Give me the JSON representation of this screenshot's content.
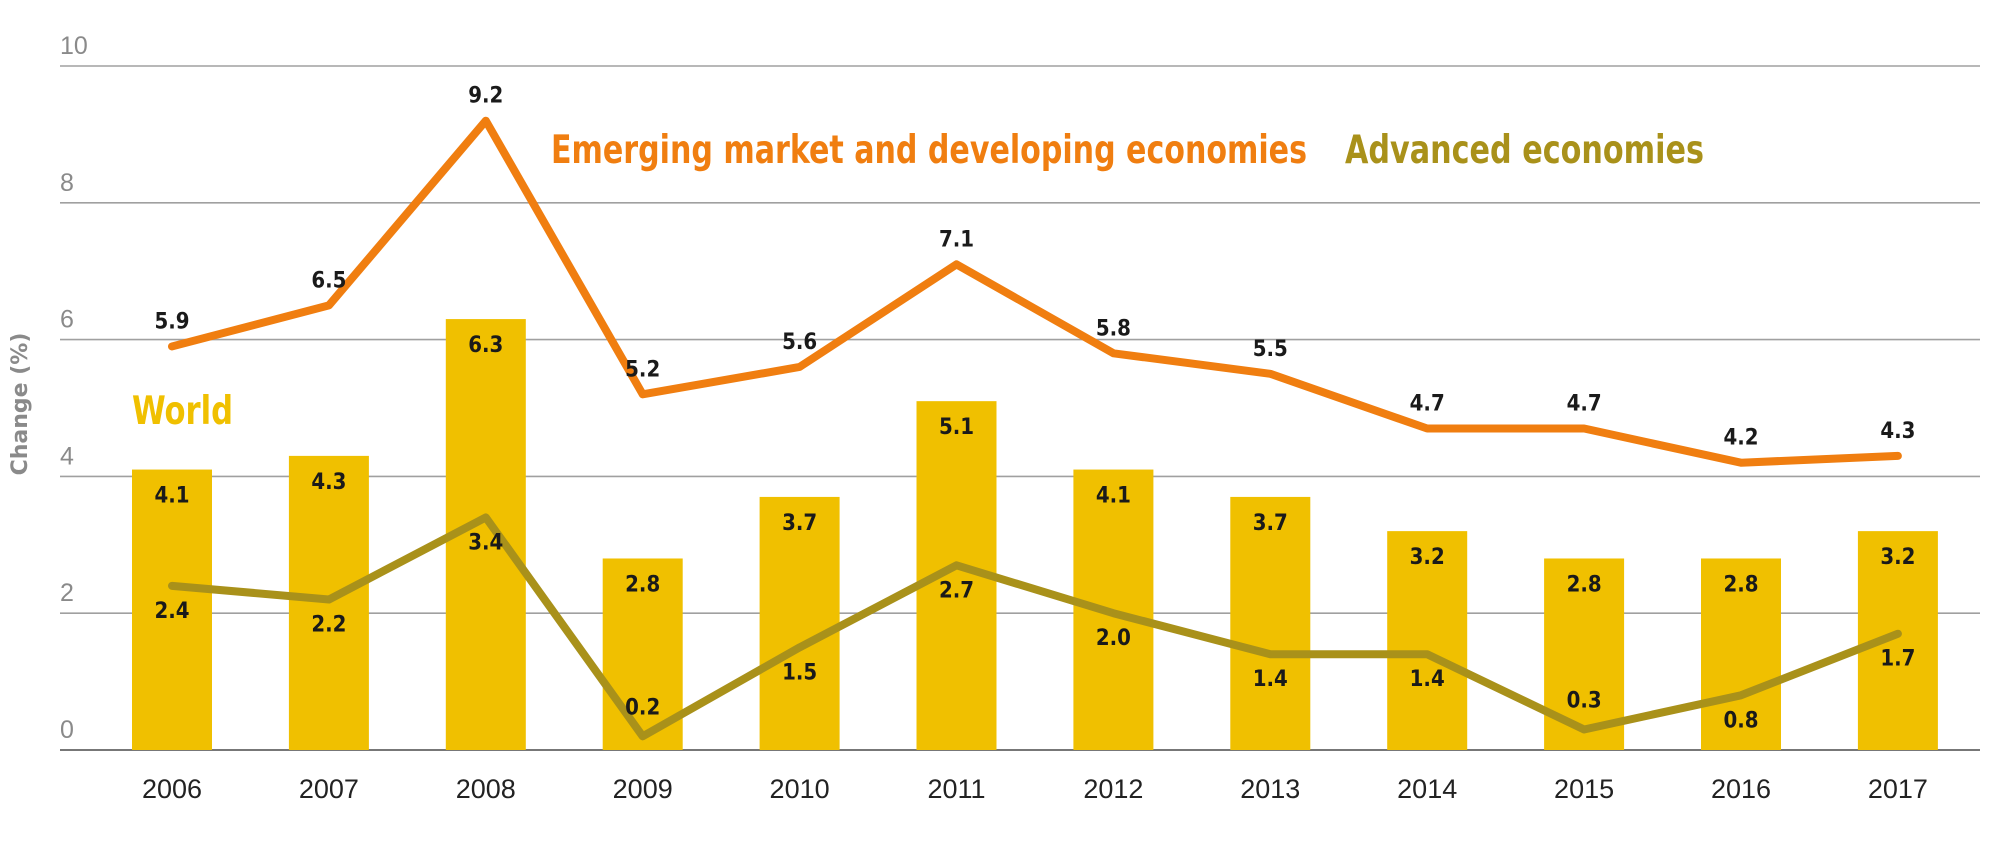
{
  "chart_data": {
    "type": "bar",
    "categories": [
      "2006",
      "2007",
      "2008",
      "2009",
      "2010",
      "2011",
      "2012",
      "2013",
      "2014",
      "2015",
      "2016",
      "2017"
    ],
    "ylabel": "Change (%)",
    "ylim": [
      0,
      10
    ],
    "yticks": [
      "0",
      "2",
      "4",
      "6",
      "8",
      "10"
    ],
    "grid": true,
    "series": [
      {
        "name": "World",
        "type": "bar",
        "color": "#f0c000",
        "values": [
          4.1,
          4.3,
          6.3,
          2.8,
          3.7,
          5.1,
          4.1,
          3.7,
          3.2,
          2.8,
          2.8,
          3.2
        ],
        "labels": [
          "4.1",
          "4.3",
          "6.3",
          "2.8",
          "3.7",
          "5.1",
          "4.1",
          "3.7",
          "3.2",
          "2.8",
          "2.8",
          "3.2"
        ]
      },
      {
        "name": "Emerging market and developing economies",
        "type": "line",
        "color": "#f07e10",
        "values": [
          5.9,
          6.5,
          9.2,
          5.2,
          5.6,
          7.1,
          5.8,
          5.5,
          4.7,
          4.7,
          4.2,
          4.3
        ],
        "labels": [
          "5.9",
          "6.5",
          "9.2",
          "5.2",
          "5.6",
          "7.1",
          "5.8",
          "5.5",
          "4.7",
          "4.7",
          "4.2",
          "4.3"
        ]
      },
      {
        "name": "Advanced economies",
        "type": "line",
        "color": "#a9911a",
        "values": [
          2.4,
          2.2,
          3.4,
          0.2,
          1.5,
          2.7,
          2.0,
          1.4,
          1.4,
          0.3,
          0.8,
          1.7
        ],
        "labels": [
          "2.4",
          "2.2",
          "3.4",
          "0.2",
          "1.5",
          "2.7",
          "2.0",
          "1.4",
          "1.4",
          "0.3",
          "0.8",
          "1.7"
        ]
      }
    ]
  }
}
